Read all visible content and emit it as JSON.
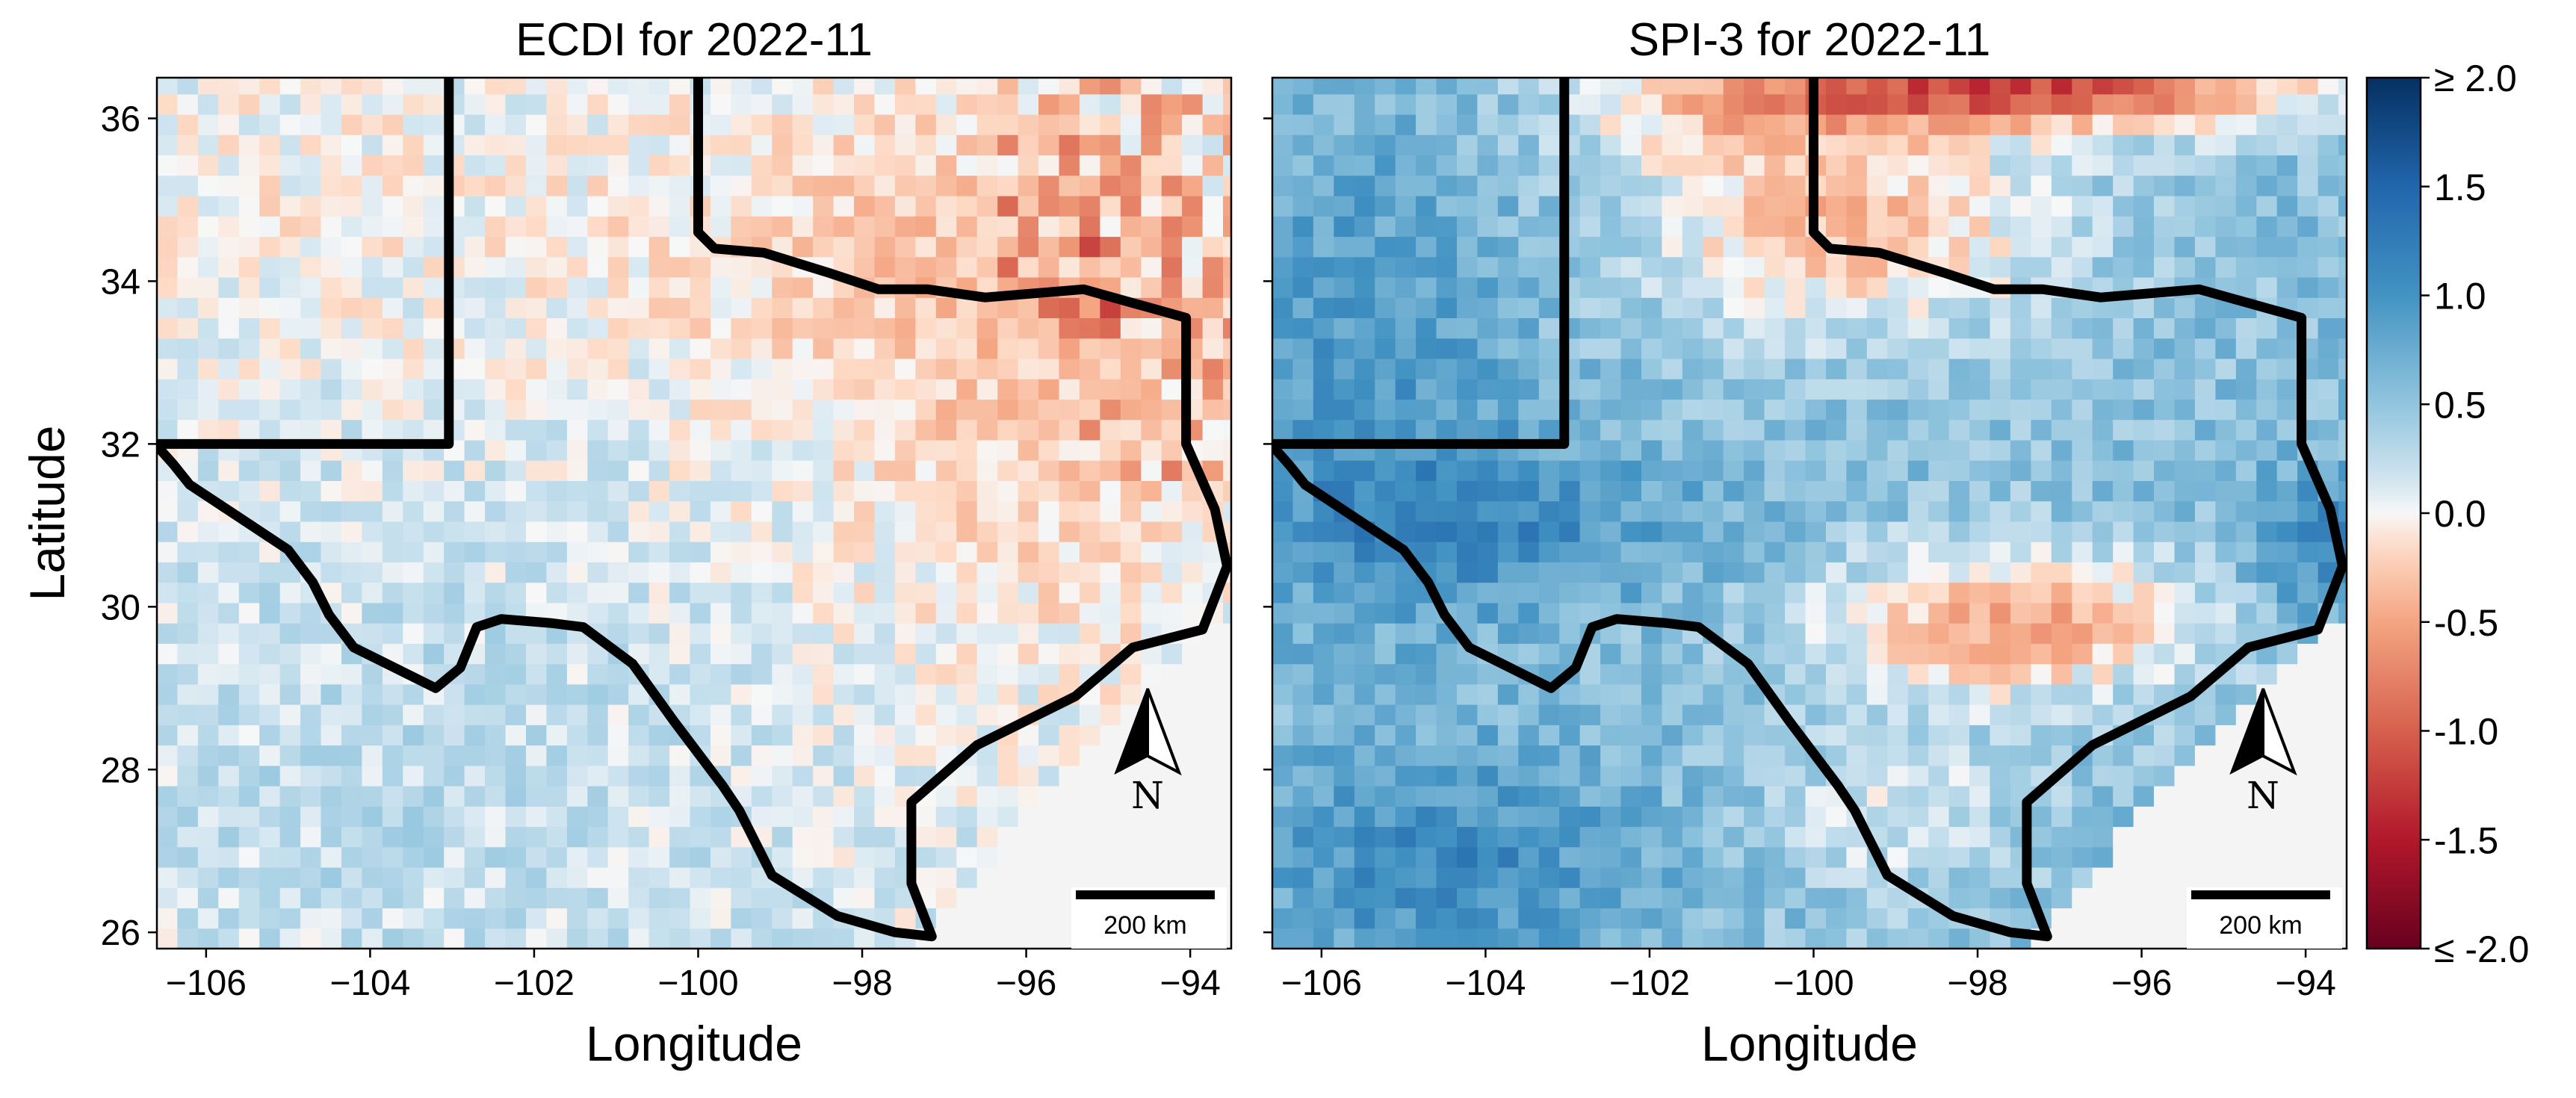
{
  "figure": {
    "colormap": "RdBu",
    "colors": {
      "neg_strong": "#67001f",
      "neg": "#d6604d",
      "neg_light": "#f4a582",
      "neutral": "#f7f7f7",
      "pos_light": "#92c5de",
      "pos": "#4393c3",
      "pos_strong": "#053061",
      "outline": "#000000",
      "ocean": "#f4f4f4"
    },
    "xlabel": "Longitude",
    "ylabel": "Latitude",
    "scale_bar_label": "200 km",
    "north_label": "N"
  },
  "panels": [
    {
      "title": "ECDI for 2022-11"
    },
    {
      "title": "SPI-3 for 2022-11"
    }
  ],
  "x_ticks": [
    "−106",
    "−104",
    "−102",
    "−100",
    "−98",
    "−96",
    "−94"
  ],
  "y_ticks": [
    "36",
    "34",
    "32",
    "30",
    "28",
    "26"
  ],
  "colorbar": {
    "labels": [
      "≥ 2.0",
      "1.5",
      "1.0",
      "0.5",
      "0.0",
      "-0.5",
      "-1.0",
      "-1.5",
      "≤ -2.0"
    ]
  },
  "chart_data": [
    {
      "type": "heatmap",
      "title": "ECDI for 2022-11",
      "xlabel": "Longitude",
      "ylabel": "Latitude",
      "xlim": [
        -106.6,
        -93.5
      ],
      "ylim": [
        25.8,
        36.5
      ],
      "grid": false,
      "colorbar_range": [
        -2.0,
        2.0
      ],
      "description_values": "mostly slightly positive (0 to 0.4) in west and southwest; negative (-0.3 to -1.2) in north-central and east Texas"
    },
    {
      "type": "heatmap",
      "title": "SPI-3 for 2022-11",
      "xlabel": "Longitude",
      "ylabel": "Latitude",
      "xlim": [
        -106.6,
        -93.5
      ],
      "ylim": [
        25.8,
        36.5
      ],
      "grid": false,
      "colorbar_range": [
        -2.0,
        2.0
      ],
      "description_values": "positive (0.3 to 1.8) across west, far-west and south Texas; strongly negative (-1.0 to -1.8) along northern panhandle edge; negative patch (-0.5 to -0.8) in central Texas"
    }
  ]
}
